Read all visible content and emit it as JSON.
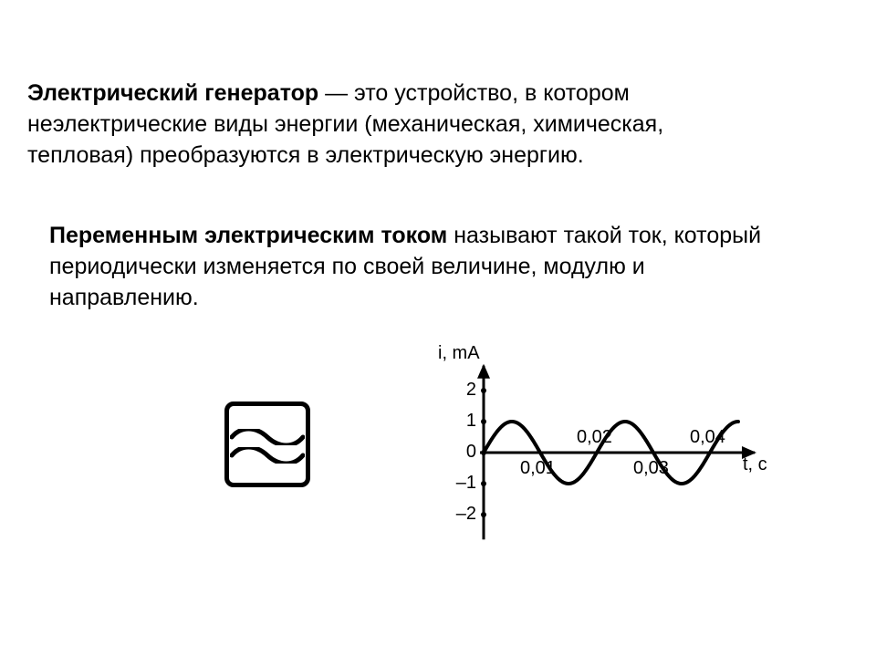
{
  "para1": {
    "bold": "Электрический генератор",
    "rest": " — это устройство, в котором неэлектрические виды энергии (механическая, химическая, тепловая) преобразуются в электрическую энергию."
  },
  "para2": {
    "bold": "Переменным электрическим током",
    "rest": " называют такой ток, который периодически изменяется по своей величине, модулю и направлению."
  },
  "chart": {
    "y_axis_label": "i, mA",
    "x_axis_label": "t, c",
    "y_ticks": [
      2,
      1,
      0,
      -1,
      -2
    ],
    "x_ticks": [
      {
        "v": 0.01,
        "label": "0,01",
        "below": true
      },
      {
        "v": 0.02,
        "label": "0,02",
        "below": false
      },
      {
        "v": 0.03,
        "label": "0,03",
        "below": true
      },
      {
        "v": 0.04,
        "label": "0,04",
        "below": false
      }
    ],
    "amplitude": 1,
    "period": 0.02,
    "x_max": 0.045,
    "stroke_color": "#000000",
    "stroke_width": 4,
    "axis_width": 3,
    "tick_dot_r": 3
  },
  "colors": {
    "text": "#000000",
    "bg": "#ffffff"
  }
}
